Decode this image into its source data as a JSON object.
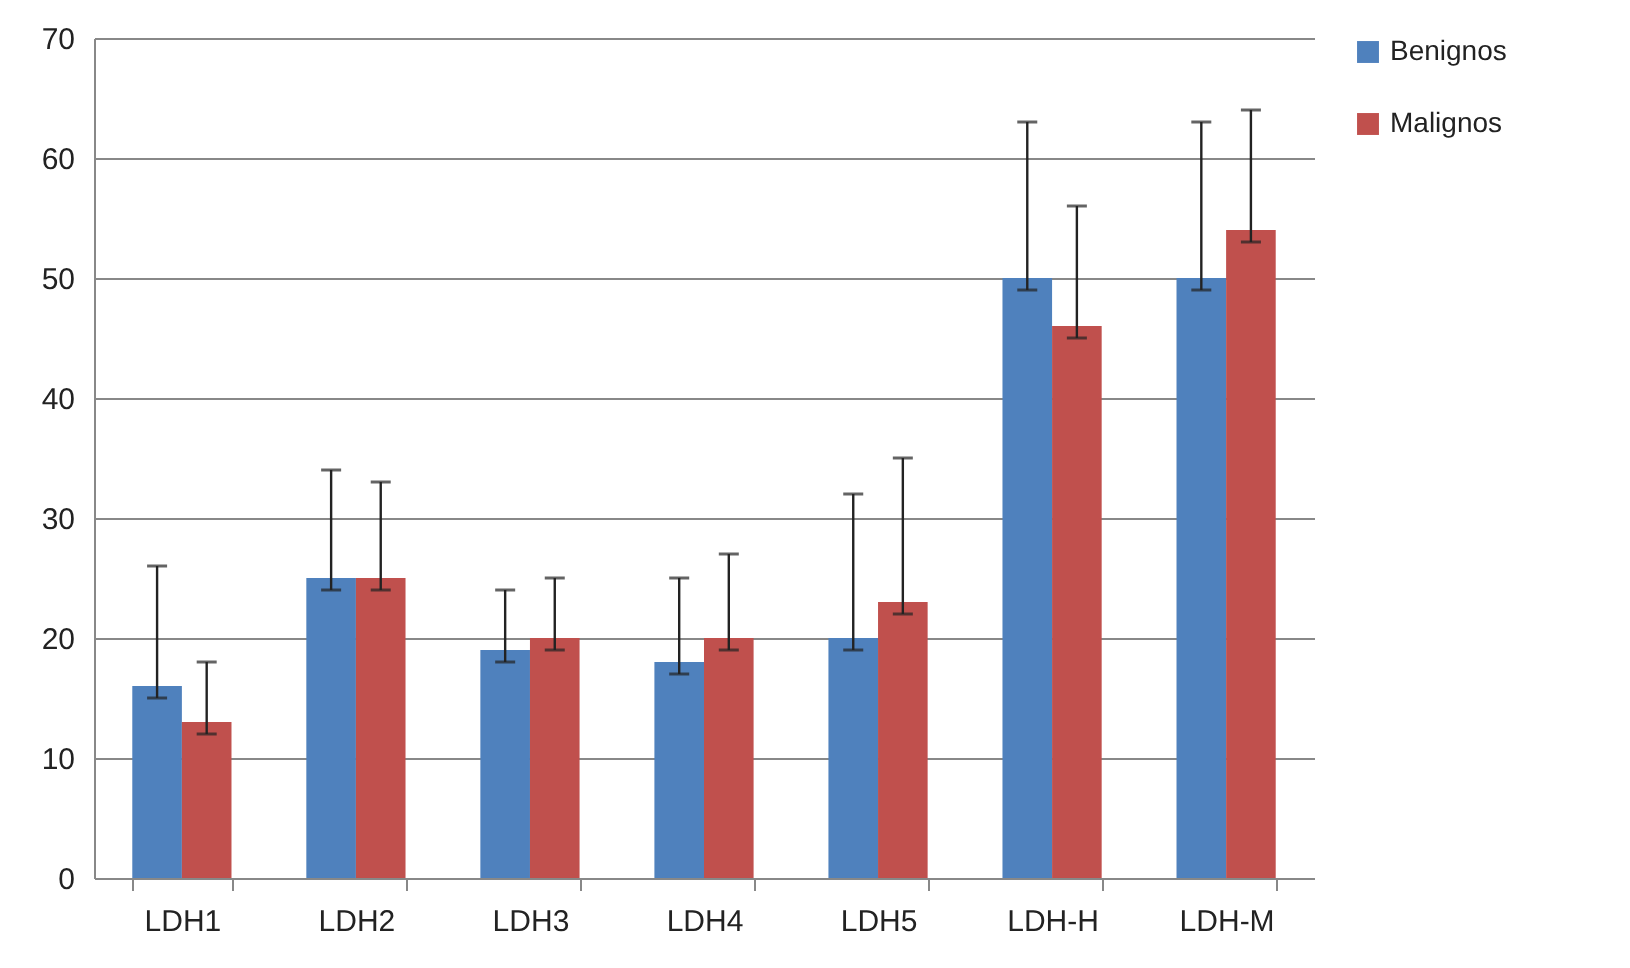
{
  "chart_data": {
    "type": "bar",
    "categories": [
      "LDH1",
      "LDH2",
      "LDH3",
      "LDH4",
      "LDH5",
      "LDH-H",
      "LDH-M"
    ],
    "series": [
      {
        "name": "Benignos",
        "color": "#4f81bd",
        "values": [
          16,
          25,
          19,
          18,
          20,
          50,
          50
        ],
        "errors": [
          [
            15,
            26
          ],
          [
            24,
            34
          ],
          [
            18,
            24
          ],
          [
            17,
            25
          ],
          [
            19,
            32
          ],
          [
            49,
            63
          ],
          [
            49,
            63
          ]
        ]
      },
      {
        "name": "Malignos",
        "color": "#c0504d",
        "values": [
          13,
          25,
          20,
          20,
          23,
          46,
          54
        ],
        "errors": [
          [
            12,
            18
          ],
          [
            24,
            33
          ],
          [
            19,
            25
          ],
          [
            19,
            27
          ],
          [
            22,
            35
          ],
          [
            45,
            56
          ],
          [
            53,
            64
          ]
        ]
      }
    ],
    "ylim": [
      0,
      70
    ],
    "yticks": [
      0,
      10,
      20,
      30,
      40,
      50,
      60,
      70
    ],
    "grid": "y",
    "legend": "right"
  }
}
